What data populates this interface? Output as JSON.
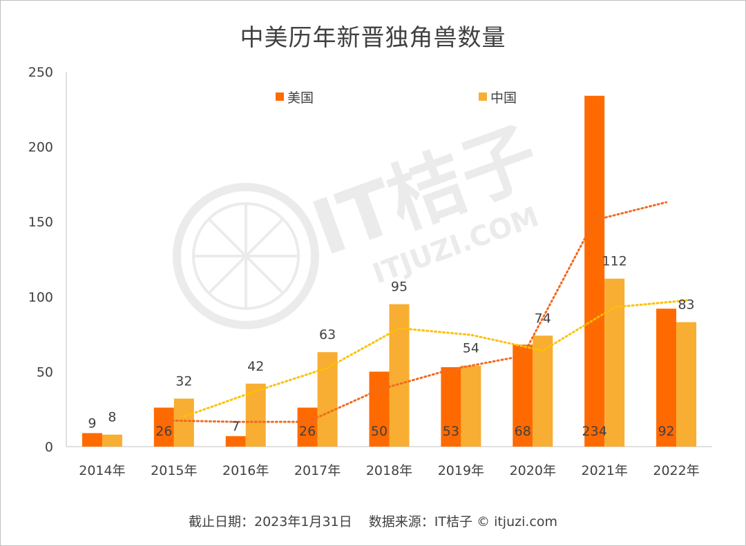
{
  "chart_data": {
    "type": "bar",
    "title": "中美历年新晋独角兽数量",
    "categories": [
      "2014年",
      "2015年",
      "2016年",
      "2017年",
      "2018年",
      "2019年",
      "2020年",
      "2021年",
      "2022年"
    ],
    "series": [
      {
        "name": "美国",
        "values": [
          9,
          26,
          7,
          26,
          50,
          53,
          68,
          234,
          92
        ],
        "color": "#ff6a00"
      },
      {
        "name": "中国",
        "values": [
          8,
          32,
          42,
          63,
          95,
          54,
          74,
          112,
          83
        ],
        "color": "#f7ae33"
      }
    ],
    "trendlines": [
      {
        "series": "美国",
        "style": "dotted moving average",
        "color": "#f06a1f"
      },
      {
        "series": "中国",
        "style": "dotted moving average",
        "color": "#ffc000"
      }
    ],
    "ylim": [
      0,
      250
    ],
    "yticks": [
      "0",
      "50",
      "100",
      "150",
      "200",
      "250"
    ],
    "legend_position": "top",
    "grid": false
  },
  "watermark": {
    "brand": "IT桔子",
    "site": "ITJUZI.COM"
  },
  "footer": "截止日期：2023年1月31日    数据来源：IT桔子 © itjuzi.com"
}
